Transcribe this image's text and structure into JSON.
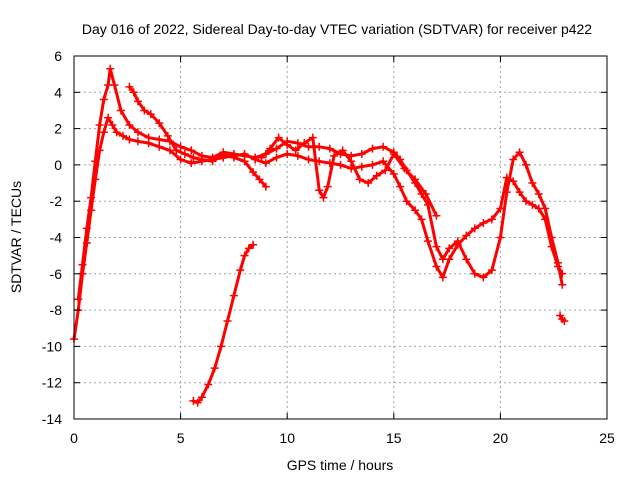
{
  "chart_data": {
    "type": "scatter",
    "title": "Day 016 of 2022, Sidereal Day-to-day VTEC variation (SDTVAR) for receiver p422",
    "xlabel": "GPS time / hours",
    "ylabel": "SDTVAR / TECUs",
    "xlim": [
      0,
      25
    ],
    "ylim": [
      -14,
      6
    ],
    "xticks": [
      0,
      5,
      10,
      15,
      20,
      25
    ],
    "yticks": [
      -14,
      -12,
      -10,
      -8,
      -6,
      -4,
      -2,
      0,
      2,
      4,
      6
    ],
    "grid": true,
    "marker": "+",
    "color": "#ff0000",
    "series": [
      {
        "name": "main-trace-lower",
        "x": [
          0.0,
          0.2,
          0.4,
          0.6,
          0.8,
          1.0,
          1.2,
          1.4,
          1.6,
          1.8,
          2.0,
          2.3,
          2.6,
          3.0,
          3.5,
          4.0,
          4.5,
          5.0,
          5.5,
          6.0,
          6.5,
          7.0,
          7.5,
          8.0,
          8.5,
          9.0,
          9.5,
          10.0,
          10.5,
          11.0,
          11.5,
          12.0,
          12.5,
          13.0,
          13.5,
          14.0,
          14.5,
          15.0,
          15.3,
          15.6,
          16.0,
          16.3,
          16.6,
          17.0,
          17.3,
          17.6,
          18.0,
          18.4,
          18.8,
          19.2,
          19.6,
          20.0,
          20.3,
          20.6,
          20.9,
          21.2,
          21.5,
          21.8,
          22.1,
          22.4,
          22.7,
          22.9
        ],
        "y": [
          -9.6,
          -8.0,
          -6.0,
          -4.3,
          -2.5,
          -0.8,
          0.8,
          1.8,
          2.6,
          2.2,
          1.8,
          1.6,
          1.4,
          1.3,
          1.2,
          1.0,
          0.8,
          0.3,
          0.1,
          0.2,
          0.3,
          0.4,
          0.5,
          0.6,
          0.3,
          0.1,
          0.4,
          0.6,
          0.5,
          0.3,
          0.2,
          0.1,
          0.0,
          -0.2,
          -0.1,
          0.0,
          0.2,
          -0.5,
          -1.2,
          -2.0,
          -2.5,
          -3.0,
          -4.2,
          -5.6,
          -6.2,
          -5.2,
          -4.4,
          -3.9,
          -3.5,
          -3.2,
          -3.0,
          -2.4,
          -0.7,
          -0.9,
          -1.5,
          -2.0,
          -2.2,
          -2.4,
          -3.0,
          -4.5,
          -5.6,
          -6.0
        ]
      },
      {
        "name": "main-trace-upper",
        "x": [
          0.2,
          0.4,
          0.6,
          0.8,
          1.0,
          1.2,
          1.4,
          1.6,
          1.7,
          1.9,
          2.2,
          2.6,
          3.0,
          3.5,
          4.0,
          4.5,
          5.0,
          5.5,
          6.0,
          6.5,
          7.0,
          7.5,
          8.0,
          8.5,
          9.0,
          9.5,
          10.0,
          10.5,
          11.0,
          11.5,
          12.0,
          12.5,
          13.0,
          13.5,
          14.0,
          14.5,
          15.0,
          15.3,
          15.6,
          16.0,
          16.3,
          16.6,
          17.0,
          17.3,
          17.6,
          18.0,
          18.4,
          18.8,
          19.2,
          19.6,
          20.0,
          20.3,
          20.6,
          20.9,
          21.2,
          21.5,
          21.8,
          22.1,
          22.4,
          22.7,
          22.9
        ],
        "y": [
          -7.4,
          -5.5,
          -3.5,
          -1.8,
          0.2,
          2.2,
          3.6,
          4.4,
          5.3,
          4.4,
          3.0,
          2.2,
          1.8,
          1.5,
          1.4,
          1.3,
          1.0,
          0.8,
          0.5,
          0.4,
          0.7,
          0.6,
          0.5,
          0.4,
          0.6,
          0.9,
          1.3,
          1.2,
          1.0,
          1.0,
          0.9,
          0.6,
          0.5,
          0.6,
          0.9,
          1.0,
          0.7,
          0.3,
          -0.3,
          -1.0,
          -1.6,
          -2.2,
          -4.5,
          -5.2,
          -4.6,
          -4.2,
          -5.2,
          -6.0,
          -6.2,
          -5.8,
          -4.0,
          -1.5,
          0.3,
          0.7,
          0.0,
          -1.0,
          -1.6,
          -2.4,
          -4.0,
          -5.4,
          -6.6
        ]
      },
      {
        "name": "secondary-branch",
        "x": [
          2.6,
          2.8,
          3.0,
          3.3,
          3.6,
          4.0,
          4.4,
          4.8,
          5.2,
          5.6,
          6.0,
          6.5,
          7.0,
          7.5,
          8.0,
          8.4,
          8.7,
          9.0
        ],
        "y": [
          4.3,
          4.0,
          3.5,
          3.0,
          2.8,
          2.3,
          1.6,
          0.8,
          0.6,
          0.4,
          0.3,
          0.2,
          0.6,
          0.4,
          0.2,
          -0.4,
          -0.8,
          -1.2
        ]
      },
      {
        "name": "mid-cluster",
        "x": [
          8.8,
          9.2,
          9.6,
          10.0,
          10.4,
          10.8,
          11.2,
          11.5,
          11.7,
          11.9,
          12.2,
          12.6,
          13.0,
          13.4,
          13.8,
          14.2,
          14.6,
          15.0,
          15.5,
          16.0,
          16.5,
          17.0
        ],
        "y": [
          0.4,
          0.9,
          1.5,
          1.1,
          0.8,
          1.2,
          1.5,
          -1.4,
          -1.8,
          -1.2,
          0.5,
          0.8,
          0.2,
          -0.8,
          -1.0,
          -0.6,
          -0.3,
          0.6,
          -0.2,
          -0.8,
          -1.6,
          -2.8
        ]
      },
      {
        "name": "isolated-rise",
        "x": [
          5.6,
          5.8,
          6.0,
          6.3,
          6.6,
          6.9,
          7.2,
          7.5,
          7.8,
          8.0,
          8.2,
          8.4
        ],
        "y": [
          -13.0,
          -13.1,
          -12.8,
          -12.1,
          -11.2,
          -10.0,
          -8.6,
          -7.2,
          -5.8,
          -5.0,
          -4.6,
          -4.4
        ]
      },
      {
        "name": "tail-outlier",
        "x": [
          22.8,
          22.9,
          23.0
        ],
        "y": [
          -8.3,
          -8.5,
          -8.6
        ]
      }
    ]
  }
}
